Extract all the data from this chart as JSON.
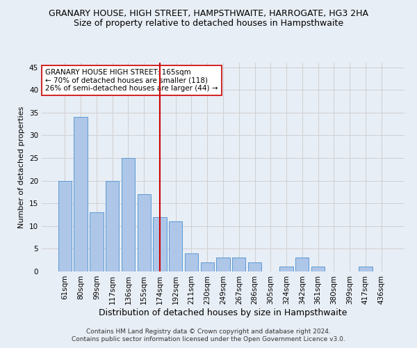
{
  "title": "GRANARY HOUSE, HIGH STREET, HAMPSTHWAITE, HARROGATE, HG3 2HA",
  "subtitle": "Size of property relative to detached houses in Hampsthwaite",
  "xlabel": "Distribution of detached houses by size in Hampsthwaite",
  "ylabel": "Number of detached properties",
  "categories": [
    "61sqm",
    "80sqm",
    "99sqm",
    "117sqm",
    "136sqm",
    "155sqm",
    "174sqm",
    "192sqm",
    "211sqm",
    "230sqm",
    "249sqm",
    "267sqm",
    "286sqm",
    "305sqm",
    "324sqm",
    "342sqm",
    "361sqm",
    "380sqm",
    "399sqm",
    "417sqm",
    "436sqm"
  ],
  "values": [
    20,
    34,
    13,
    20,
    25,
    17,
    12,
    11,
    4,
    2,
    3,
    3,
    2,
    0,
    1,
    3,
    1,
    0,
    0,
    1,
    0
  ],
  "bar_color": "#aec6e8",
  "bar_edge_color": "#5b9bd5",
  "grid_color": "#d0d0d0",
  "background_color": "#e8eef5",
  "vline_x": 6.0,
  "vline_color": "#cc0000",
  "annotation_lines": [
    "GRANARY HOUSE HIGH STREET: 165sqm",
    "← 70% of detached houses are smaller (118)",
    "26% of semi-detached houses are larger (44) →"
  ],
  "ylim": [
    0,
    46
  ],
  "yticks": [
    0,
    5,
    10,
    15,
    20,
    25,
    30,
    35,
    40,
    45
  ],
  "footnote1": "Contains HM Land Registry data © Crown copyright and database right 2024.",
  "footnote2": "Contains public sector information licensed under the Open Government Licence v3.0.",
  "title_fontsize": 9,
  "subtitle_fontsize": 9,
  "xlabel_fontsize": 9,
  "ylabel_fontsize": 8,
  "tick_fontsize": 7.5,
  "annot_fontsize": 7.5,
  "footnote_fontsize": 6.5
}
